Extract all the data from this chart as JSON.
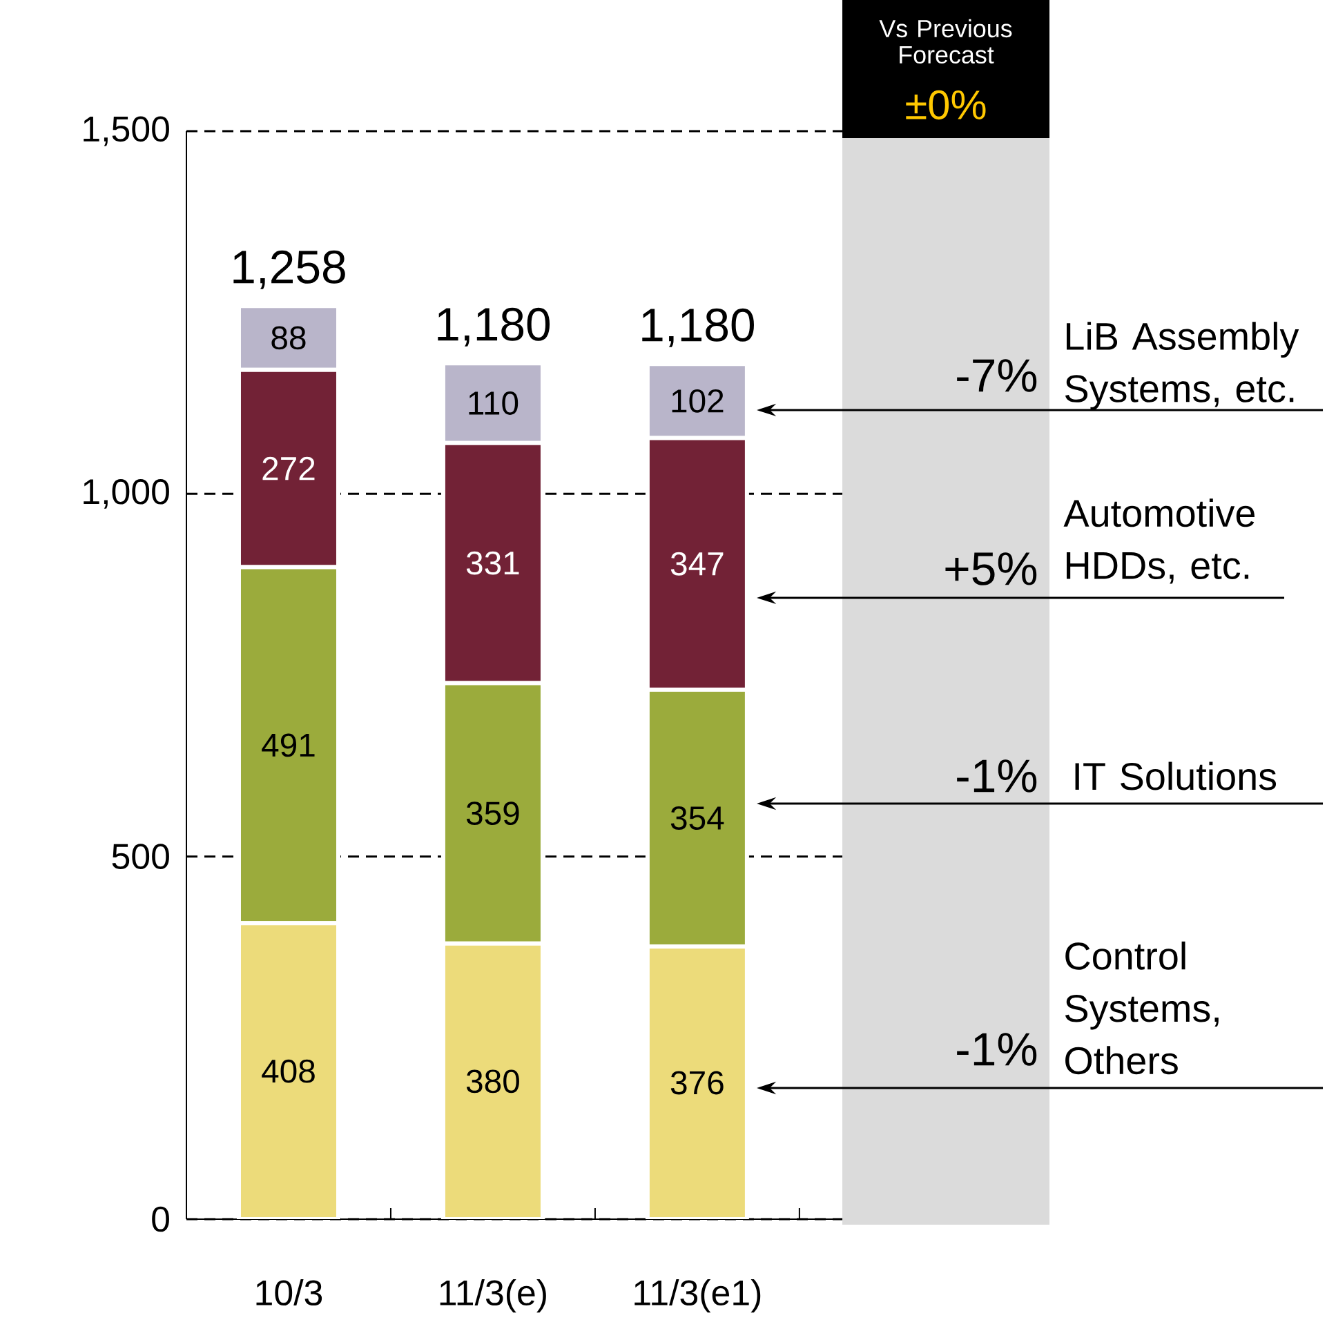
{
  "chart_data": {
    "type": "bar",
    "stacked": true,
    "categories": [
      "10/3",
      "11/3(e)",
      "11/3(e1)"
    ],
    "series": [
      {
        "name": "Control Systems, Others",
        "color": "#ecdb7a",
        "values": [
          408,
          380,
          376
        ]
      },
      {
        "name": "IT Solutions",
        "color": "#9bab3c",
        "values": [
          491,
          359,
          354
        ]
      },
      {
        "name": "Automotive HDDs, etc.",
        "color": "#722236",
        "values": [
          272,
          331,
          347
        ]
      },
      {
        "name": "LiB Assembly Systems, etc.",
        "color": "#b9b5ca",
        "values": [
          88,
          110,
          102
        ]
      }
    ],
    "totals": [
      "1,258",
      "1,180",
      "1,180"
    ],
    "data_labels": true,
    "ylim": [
      0,
      1500
    ],
    "yticks": [
      0,
      500,
      {
        "value": 1000,
        "label": "1,000"
      },
      {
        "value": 1500,
        "label": "1,500"
      }
    ],
    "grid": "y",
    "annotations": [
      "Vs Previous Forecast",
      "±0%",
      "-1%",
      "-1%",
      "+5%",
      "-7%"
    ]
  }
}
